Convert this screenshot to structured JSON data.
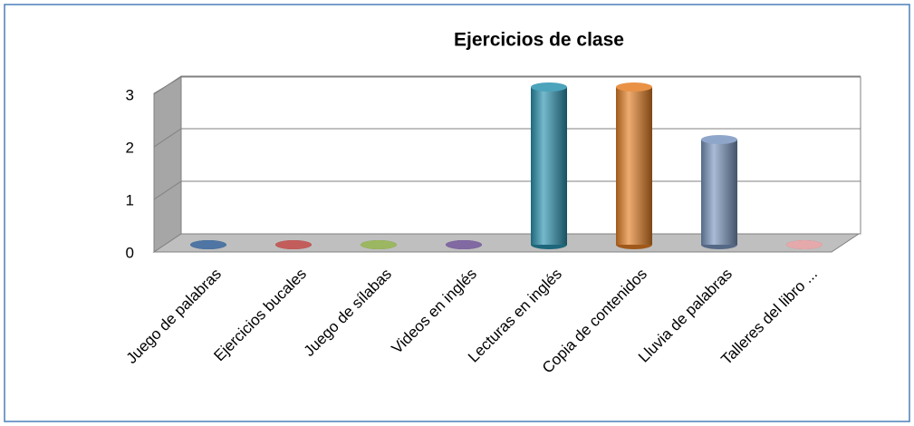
{
  "chart_data": {
    "type": "bar3d",
    "title": "Ejercicios de clase",
    "categories": [
      "Juego de palabras",
      "Ejercicios bucales",
      "Juego de sílabas",
      "Videos en inglés",
      "Lecturas en inglés",
      "Copia de contenidos",
      "Lluvia de palabras",
      "Talleres del libro ..."
    ],
    "values": [
      0,
      0,
      0,
      0,
      3,
      3,
      2,
      0
    ],
    "colors": [
      "#2f5d93",
      "#b8413e",
      "#8aaa45",
      "#6b4f91",
      "#2b93b0",
      "#e57f25",
      "#7a96c0",
      "#e09a9c"
    ],
    "ylim": [
      0,
      3
    ],
    "yticks": [
      0,
      1,
      2,
      3
    ],
    "grid": true
  }
}
